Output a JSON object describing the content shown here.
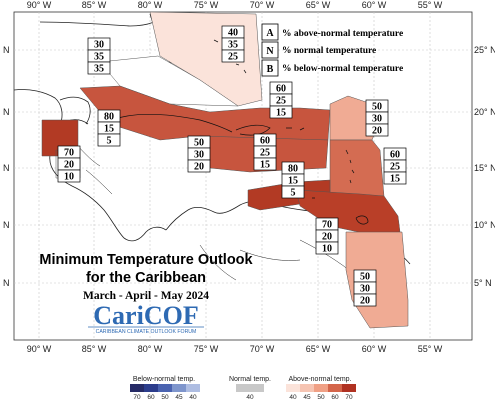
{
  "title": {
    "line1": "Minimum Temperature Outlook",
    "line2": "for the Caribbean",
    "season": "March - April - May 2024"
  },
  "logo": {
    "name": "CariCOF",
    "forum": "CARIBBEAN CLIMATE OUTLOOK FORUM"
  },
  "legend": {
    "items": [
      {
        "key": "A",
        "label": "% above-normal temperature"
      },
      {
        "key": "N",
        "label": "% normal temperature"
      },
      {
        "key": "B",
        "label": "% below-normal temperature"
      }
    ]
  },
  "axes": {
    "lon_ticks": [
      "90° W",
      "85° W",
      "80° W",
      "75° W",
      "70° W",
      "65° W",
      "60° W",
      "55° W"
    ],
    "lat_ticks_right": [
      "25° N",
      "20° N",
      "15° N",
      "10° N",
      "5° N"
    ],
    "lat_ticks_left": [
      "N",
      "N",
      "N",
      "N",
      "N"
    ]
  },
  "regions": [
    {
      "id": "bahamas",
      "above": "40",
      "normal": "35",
      "below": "25",
      "color": "#fbe3da"
    },
    {
      "id": "cuba-west",
      "above": "30",
      "normal": "35",
      "below": "35",
      "color": "#ffffff"
    },
    {
      "id": "greater-antilles",
      "above": "60",
      "normal": "25",
      "below": "15",
      "color": "#c7553e"
    },
    {
      "id": "belize",
      "above": "80",
      "normal": "15",
      "below": "5",
      "color": "#b23a24"
    },
    {
      "id": "honduras-nicaragua",
      "above": "70",
      "normal": "20",
      "below": "10",
      "color": "#b93f28"
    },
    {
      "id": "central-caribbean",
      "above": "50",
      "normal": "30",
      "below": "20",
      "color": "#f0ab94"
    },
    {
      "id": "hispaniola-south",
      "above": "60",
      "normal": "25",
      "below": "15",
      "color": "#c7553e"
    },
    {
      "id": "leeward",
      "above": "50",
      "normal": "30",
      "below": "20",
      "color": "#f0ab94"
    },
    {
      "id": "windward",
      "above": "60",
      "normal": "25",
      "below": "15",
      "color": "#d46c52"
    },
    {
      "id": "abc-islands",
      "above": "80",
      "normal": "15",
      "below": "5",
      "color": "#b23a24"
    },
    {
      "id": "trinidad",
      "above": "70",
      "normal": "20",
      "below": "10",
      "color": "#b93f28"
    },
    {
      "id": "guianas",
      "above": "50",
      "normal": "30",
      "below": "20",
      "color": "#f0ab94"
    }
  ],
  "colorbar": {
    "below_title": "Below-normal temp.",
    "normal_title": "Normal temp.",
    "above_title": "Above-normal temp.",
    "below_ticks": [
      "70",
      "60",
      "50",
      "45",
      "40"
    ],
    "normal_ticks": [
      "40"
    ],
    "above_ticks": [
      "40",
      "45",
      "50",
      "60",
      "70"
    ],
    "colors": {
      "below": [
        "#262b66",
        "#2c3d8c",
        "#4a63b0",
        "#7e95cc",
        "#aebde2"
      ],
      "normal": "#c8c8c8",
      "above": [
        "#fbe3da",
        "#f6c4b2",
        "#f0a085",
        "#d4654a",
        "#b03222"
      ]
    }
  }
}
